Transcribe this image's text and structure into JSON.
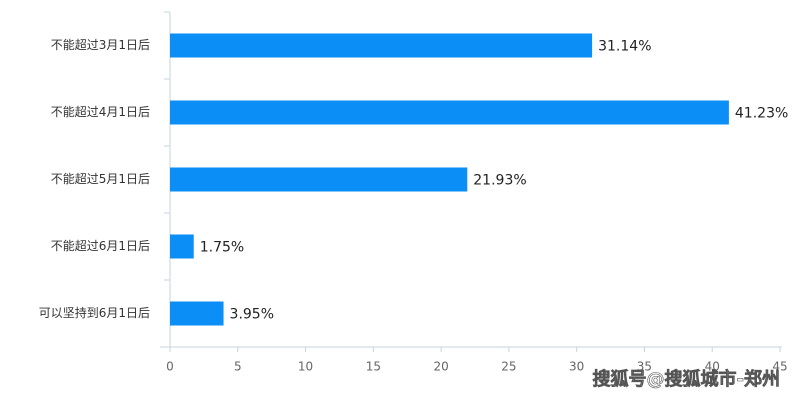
{
  "chart_data": {
    "type": "hbar",
    "categories": [
      "不能超过3月1日后",
      "不能超过4月1日后",
      "不能超过5月1日后",
      "不能超过6月1日后",
      "可以坚持到6月1日后"
    ],
    "values": [
      31.14,
      41.23,
      21.93,
      1.75,
      3.95
    ],
    "value_labels": [
      "31.14%",
      "41.23%",
      "21.93%",
      "1.75%",
      "3.95%"
    ],
    "color": "#0b8ef5",
    "xlim": [
      0,
      45
    ],
    "xticks": [
      0,
      5,
      10,
      15,
      20,
      25,
      30,
      35,
      40,
      45
    ],
    "watermark": "搜狐号@搜狐城市-郑州"
  }
}
